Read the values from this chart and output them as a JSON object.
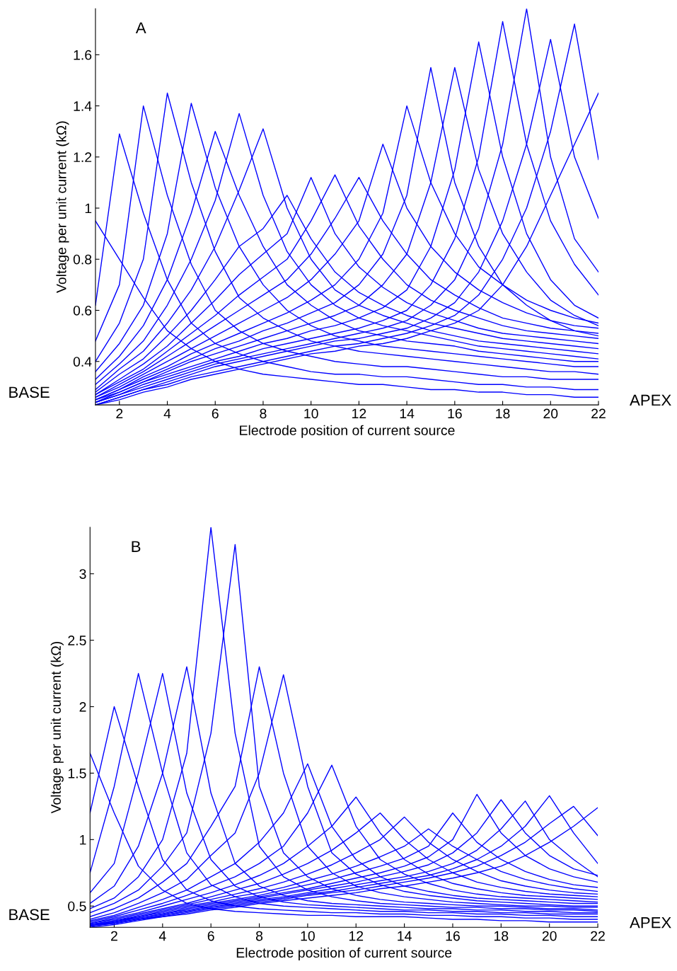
{
  "chart_data": [
    {
      "type": "line",
      "xlabel": "Electrode position of current source",
      "ylabel": "Voltage per unit current (kΩ)",
      "annotations": [
        "A",
        "BASE",
        "APEX"
      ],
      "x": [
        1,
        2,
        3,
        4,
        5,
        6,
        7,
        8,
        9,
        10,
        11,
        12,
        13,
        14,
        15,
        16,
        17,
        18,
        19,
        20,
        21,
        22
      ],
      "xlim": [
        1,
        22
      ],
      "xticks": [
        2,
        4,
        6,
        8,
        10,
        12,
        14,
        16,
        18,
        20,
        22
      ],
      "ylim": [
        0.23,
        1.78
      ],
      "yticks": [
        0.4,
        0.6,
        0.8,
        1,
        1.2,
        1.4,
        1.6
      ],
      "grid": false,
      "marker": "none",
      "line_style": "solid",
      "series": [
        {
          "color": "#0000ff",
          "values": [
            0.95,
            0.8,
            0.65,
            0.52,
            0.45,
            0.4,
            0.37,
            0.35,
            0.34,
            0.33,
            0.32,
            0.31,
            0.31,
            0.3,
            0.29,
            0.29,
            0.28,
            0.28,
            0.27,
            0.27,
            0.26,
            0.26
          ]
        },
        {
          "color": "#0000ff",
          "values": [
            0.62,
            1.29,
            0.98,
            0.72,
            0.55,
            0.47,
            0.43,
            0.4,
            0.38,
            0.36,
            0.35,
            0.35,
            0.34,
            0.34,
            0.33,
            0.32,
            0.31,
            0.31,
            0.3,
            0.3,
            0.29,
            0.29
          ]
        },
        {
          "color": "#0000ff",
          "values": [
            0.48,
            0.7,
            1.4,
            1.05,
            0.78,
            0.6,
            0.52,
            0.47,
            0.44,
            0.42,
            0.4,
            0.39,
            0.38,
            0.38,
            0.37,
            0.36,
            0.35,
            0.34,
            0.34,
            0.33,
            0.33,
            0.33
          ]
        },
        {
          "color": "#0000ff",
          "values": [
            0.4,
            0.55,
            0.8,
            1.45,
            1.1,
            0.83,
            0.65,
            0.57,
            0.52,
            0.48,
            0.46,
            0.44,
            0.43,
            0.42,
            0.41,
            0.4,
            0.39,
            0.38,
            0.37,
            0.36,
            0.36,
            0.35
          ]
        },
        {
          "color": "#0000ff",
          "values": [
            0.36,
            0.47,
            0.62,
            0.9,
            1.41,
            1.08,
            0.85,
            0.7,
            0.6,
            0.54,
            0.5,
            0.48,
            0.46,
            0.45,
            0.44,
            0.43,
            0.42,
            0.41,
            0.4,
            0.39,
            0.38,
            0.38
          ]
        },
        {
          "color": "#0000ff",
          "values": [
            0.33,
            0.42,
            0.54,
            0.72,
            0.98,
            1.3,
            1.05,
            0.85,
            0.7,
            0.62,
            0.56,
            0.52,
            0.5,
            0.48,
            0.47,
            0.46,
            0.44,
            0.43,
            0.42,
            0.41,
            0.4,
            0.4
          ]
        },
        {
          "color": "#0000ff",
          "values": [
            0.31,
            0.39,
            0.48,
            0.62,
            0.8,
            1.03,
            1.37,
            1.05,
            0.83,
            0.7,
            0.62,
            0.57,
            0.54,
            0.52,
            0.5,
            0.48,
            0.46,
            0.45,
            0.44,
            0.43,
            0.42,
            0.41
          ]
        },
        {
          "color": "#0000ff",
          "values": [
            0.29,
            0.37,
            0.44,
            0.55,
            0.68,
            0.85,
            1.07,
            1.31,
            1.0,
            0.8,
            0.68,
            0.62,
            0.58,
            0.55,
            0.52,
            0.5,
            0.48,
            0.47,
            0.46,
            0.45,
            0.44,
            0.43
          ]
        },
        {
          "color": "#0000ff",
          "values": [
            0.28,
            0.35,
            0.41,
            0.5,
            0.6,
            0.72,
            0.85,
            0.92,
            1.05,
            0.88,
            0.75,
            0.67,
            0.62,
            0.58,
            0.55,
            0.53,
            0.51,
            0.49,
            0.48,
            0.47,
            0.46,
            0.45
          ]
        },
        {
          "color": "#0000ff",
          "values": [
            0.27,
            0.33,
            0.39,
            0.46,
            0.55,
            0.64,
            0.74,
            0.82,
            0.9,
            1.12,
            0.9,
            0.77,
            0.69,
            0.63,
            0.59,
            0.56,
            0.53,
            0.51,
            0.5,
            0.49,
            0.48,
            0.47
          ]
        },
        {
          "color": "#0000ff",
          "values": [
            0.27,
            0.32,
            0.37,
            0.44,
            0.51,
            0.58,
            0.66,
            0.73,
            0.8,
            0.95,
            1.13,
            0.93,
            0.8,
            0.7,
            0.64,
            0.6,
            0.57,
            0.54,
            0.52,
            0.51,
            0.5,
            0.49
          ]
        },
        {
          "color": "#0000ff",
          "values": [
            0.26,
            0.31,
            0.36,
            0.42,
            0.48,
            0.54,
            0.6,
            0.66,
            0.72,
            0.82,
            0.96,
            1.12,
            0.95,
            0.82,
            0.72,
            0.66,
            0.61,
            0.57,
            0.55,
            0.53,
            0.52,
            0.51
          ]
        },
        {
          "color": "#0000ff",
          "values": [
            0.26,
            0.3,
            0.35,
            0.4,
            0.45,
            0.5,
            0.55,
            0.6,
            0.65,
            0.72,
            0.82,
            0.95,
            1.25,
            1.0,
            0.85,
            0.75,
            0.68,
            0.63,
            0.59,
            0.56,
            0.54,
            0.53
          ]
        },
        {
          "color": "#0000ff",
          "values": [
            0.25,
            0.29,
            0.34,
            0.38,
            0.43,
            0.47,
            0.51,
            0.55,
            0.59,
            0.64,
            0.7,
            0.8,
            0.98,
            1.4,
            1.1,
            0.9,
            0.77,
            0.7,
            0.64,
            0.6,
            0.57,
            0.55
          ]
        },
        {
          "color": "#0000ff",
          "values": [
            0.25,
            0.29,
            0.33,
            0.37,
            0.41,
            0.45,
            0.48,
            0.52,
            0.55,
            0.59,
            0.63,
            0.7,
            0.82,
            1.05,
            1.55,
            1.1,
            0.85,
            0.7,
            0.62,
            0.56,
            0.52,
            0.5
          ]
        },
        {
          "color": "#0000ff",
          "values": [
            0.25,
            0.28,
            0.32,
            0.36,
            0.4,
            0.43,
            0.46,
            0.49,
            0.52,
            0.55,
            0.58,
            0.62,
            0.7,
            0.82,
            1.1,
            1.55,
            1.15,
            0.9,
            0.75,
            0.64,
            0.58,
            0.54
          ]
        },
        {
          "color": "#0000ff",
          "values": [
            0.24,
            0.28,
            0.32,
            0.35,
            0.38,
            0.41,
            0.44,
            0.47,
            0.49,
            0.52,
            0.54,
            0.57,
            0.61,
            0.68,
            0.85,
            1.15,
            1.65,
            1.2,
            0.9,
            0.72,
            0.62,
            0.57
          ]
        },
        {
          "color": "#0000ff",
          "values": [
            0.24,
            0.27,
            0.31,
            0.34,
            0.37,
            0.4,
            0.42,
            0.45,
            0.47,
            0.49,
            0.51,
            0.53,
            0.56,
            0.6,
            0.7,
            0.88,
            1.2,
            1.73,
            1.25,
            0.95,
            0.78,
            0.66
          ]
        },
        {
          "color": "#0000ff",
          "values": [
            0.24,
            0.27,
            0.3,
            0.33,
            0.36,
            0.39,
            0.41,
            0.43,
            0.45,
            0.47,
            0.49,
            0.51,
            0.53,
            0.56,
            0.62,
            0.72,
            0.92,
            1.25,
            1.78,
            1.2,
            0.88,
            0.75
          ]
        },
        {
          "color": "#0000ff",
          "values": [
            0.23,
            0.26,
            0.29,
            0.32,
            0.35,
            0.38,
            0.4,
            0.42,
            0.44,
            0.46,
            0.48,
            0.49,
            0.51,
            0.53,
            0.57,
            0.63,
            0.75,
            0.95,
            1.25,
            1.66,
            1.2,
            0.96
          ]
        },
        {
          "color": "#0000ff",
          "values": [
            0.23,
            0.26,
            0.29,
            0.31,
            0.34,
            0.36,
            0.38,
            0.4,
            0.42,
            0.44,
            0.46,
            0.47,
            0.49,
            0.51,
            0.54,
            0.58,
            0.66,
            0.8,
            1.0,
            1.3,
            1.72,
            1.19
          ]
        },
        {
          "color": "#0000ff",
          "values": [
            0.23,
            0.25,
            0.28,
            0.3,
            0.33,
            0.35,
            0.37,
            0.39,
            0.41,
            0.43,
            0.44,
            0.46,
            0.47,
            0.49,
            0.52,
            0.55,
            0.6,
            0.7,
            0.85,
            1.05,
            1.25,
            1.45
          ]
        }
      ]
    },
    {
      "type": "line",
      "xlabel": "Electrode position of current source",
      "ylabel": "Voltage per unit current (kΩ)",
      "annotations": [
        "B",
        "BASE",
        "APEX"
      ],
      "x": [
        1,
        2,
        3,
        4,
        5,
        6,
        7,
        8,
        9,
        10,
        11,
        12,
        13,
        14,
        15,
        16,
        17,
        18,
        19,
        20,
        21,
        22
      ],
      "xlim": [
        1,
        22
      ],
      "xticks": [
        2,
        4,
        6,
        8,
        10,
        12,
        14,
        16,
        18,
        20,
        22
      ],
      "ylim": [
        0.34,
        3.35
      ],
      "yticks": [
        0.5,
        1,
        1.5,
        2,
        2.5,
        3
      ],
      "grid": false,
      "marker": "none",
      "line_style": "solid",
      "series": [
        {
          "color": "#0000ff",
          "values": [
            1.65,
            1.2,
            0.8,
            0.62,
            0.52,
            0.48,
            0.46,
            0.45,
            0.44,
            0.43,
            0.43,
            0.42,
            0.42,
            0.42,
            0.41,
            0.4,
            0.4,
            0.39,
            0.39,
            0.38,
            0.38,
            0.38
          ]
        },
        {
          "color": "#0000ff",
          "values": [
            1.2,
            2.0,
            1.4,
            0.85,
            0.62,
            0.54,
            0.5,
            0.48,
            0.47,
            0.46,
            0.45,
            0.45,
            0.44,
            0.44,
            0.43,
            0.43,
            0.42,
            0.42,
            0.41,
            0.41,
            0.4,
            0.4
          ]
        },
        {
          "color": "#0000ff",
          "values": [
            0.75,
            1.4,
            2.25,
            1.5,
            0.9,
            0.66,
            0.57,
            0.52,
            0.5,
            0.49,
            0.48,
            0.47,
            0.46,
            0.46,
            0.45,
            0.45,
            0.44,
            0.44,
            0.43,
            0.43,
            0.42,
            0.42
          ]
        },
        {
          "color": "#0000ff",
          "values": [
            0.6,
            0.82,
            1.5,
            2.25,
            1.35,
            0.85,
            0.65,
            0.57,
            0.53,
            0.51,
            0.5,
            0.49,
            0.48,
            0.47,
            0.47,
            0.46,
            0.46,
            0.45,
            0.45,
            0.44,
            0.44,
            0.44
          ]
        },
        {
          "color": "#0000ff",
          "values": [
            0.52,
            0.65,
            0.95,
            1.5,
            2.3,
            1.35,
            0.82,
            0.65,
            0.58,
            0.54,
            0.52,
            0.51,
            0.5,
            0.49,
            0.48,
            0.48,
            0.47,
            0.47,
            0.46,
            0.46,
            0.45,
            0.45
          ]
        },
        {
          "color": "#0000ff",
          "values": [
            0.48,
            0.56,
            0.72,
            1.0,
            1.65,
            3.35,
            1.8,
            0.95,
            0.72,
            0.62,
            0.57,
            0.54,
            0.52,
            0.51,
            0.5,
            0.49,
            0.49,
            0.48,
            0.48,
            0.47,
            0.47,
            0.46
          ]
        },
        {
          "color": "#0000ff",
          "values": [
            0.45,
            0.52,
            0.62,
            0.8,
            1.05,
            1.8,
            3.22,
            1.4,
            0.9,
            0.72,
            0.63,
            0.58,
            0.55,
            0.53,
            0.52,
            0.51,
            0.5,
            0.5,
            0.49,
            0.48,
            0.48,
            0.47
          ]
        },
        {
          "color": "#0000ff",
          "values": [
            0.42,
            0.48,
            0.56,
            0.68,
            0.82,
            1.1,
            1.4,
            2.3,
            1.5,
            0.95,
            0.75,
            0.65,
            0.6,
            0.57,
            0.55,
            0.53,
            0.52,
            0.51,
            0.5,
            0.5,
            0.49,
            0.49
          ]
        },
        {
          "color": "#0000ff",
          "values": [
            0.4,
            0.45,
            0.52,
            0.6,
            0.7,
            0.88,
            1.05,
            1.5,
            2.24,
            1.4,
            0.9,
            0.74,
            0.66,
            0.61,
            0.58,
            0.56,
            0.54,
            0.53,
            0.52,
            0.51,
            0.5,
            0.5
          ]
        },
        {
          "color": "#0000ff",
          "values": [
            0.39,
            0.43,
            0.49,
            0.55,
            0.62,
            0.72,
            0.82,
            0.98,
            1.2,
            1.57,
            1.1,
            0.85,
            0.72,
            0.65,
            0.61,
            0.58,
            0.56,
            0.55,
            0.54,
            0.53,
            0.52,
            0.52
          ]
        },
        {
          "color": "#0000ff",
          "values": [
            0.38,
            0.42,
            0.47,
            0.52,
            0.58,
            0.65,
            0.72,
            0.82,
            0.95,
            1.2,
            1.56,
            1.1,
            0.85,
            0.74,
            0.67,
            0.62,
            0.59,
            0.57,
            0.56,
            0.55,
            0.54,
            0.53
          ]
        },
        {
          "color": "#0000ff",
          "values": [
            0.37,
            0.41,
            0.45,
            0.5,
            0.55,
            0.6,
            0.66,
            0.73,
            0.82,
            0.95,
            1.1,
            1.32,
            1.05,
            0.85,
            0.74,
            0.67,
            0.63,
            0.6,
            0.58,
            0.57,
            0.56,
            0.55
          ]
        },
        {
          "color": "#0000ff",
          "values": [
            0.37,
            0.4,
            0.44,
            0.48,
            0.52,
            0.57,
            0.62,
            0.67,
            0.74,
            0.82,
            0.92,
            1.05,
            1.2,
            1.0,
            0.85,
            0.75,
            0.68,
            0.64,
            0.61,
            0.59,
            0.58,
            0.57
          ]
        },
        {
          "color": "#0000ff",
          "values": [
            0.36,
            0.39,
            0.43,
            0.47,
            0.51,
            0.55,
            0.59,
            0.63,
            0.68,
            0.74,
            0.81,
            0.9,
            1.0,
            1.17,
            0.98,
            0.85,
            0.76,
            0.69,
            0.65,
            0.62,
            0.6,
            0.59
          ]
        },
        {
          "color": "#0000ff",
          "values": [
            0.36,
            0.39,
            0.42,
            0.46,
            0.5,
            0.53,
            0.57,
            0.6,
            0.64,
            0.69,
            0.74,
            0.8,
            0.87,
            0.95,
            1.08,
            0.95,
            0.85,
            0.76,
            0.7,
            0.66,
            0.63,
            0.61
          ]
        },
        {
          "color": "#0000ff",
          "values": [
            0.36,
            0.38,
            0.42,
            0.45,
            0.49,
            0.52,
            0.55,
            0.58,
            0.62,
            0.66,
            0.7,
            0.75,
            0.8,
            0.86,
            0.95,
            1.2,
            0.98,
            0.85,
            0.76,
            0.7,
            0.66,
            0.64
          ]
        },
        {
          "color": "#0000ff",
          "values": [
            0.35,
            0.38,
            0.41,
            0.44,
            0.48,
            0.51,
            0.54,
            0.57,
            0.6,
            0.63,
            0.67,
            0.71,
            0.75,
            0.8,
            0.87,
            1.0,
            1.34,
            1.05,
            0.88,
            0.78,
            0.72,
            0.68
          ]
        },
        {
          "color": "#0000ff",
          "values": [
            0.35,
            0.38,
            0.41,
            0.44,
            0.47,
            0.5,
            0.53,
            0.56,
            0.59,
            0.62,
            0.65,
            0.68,
            0.72,
            0.76,
            0.81,
            0.9,
            1.05,
            1.3,
            1.05,
            0.88,
            0.78,
            0.73
          ]
        },
        {
          "color": "#0000ff",
          "values": [
            0.35,
            0.37,
            0.4,
            0.43,
            0.46,
            0.49,
            0.52,
            0.55,
            0.57,
            0.6,
            0.63,
            0.66,
            0.69,
            0.72,
            0.76,
            0.82,
            0.92,
            1.08,
            1.29,
            1.0,
            0.85,
            0.72
          ]
        },
        {
          "color": "#0000ff",
          "values": [
            0.35,
            0.37,
            0.4,
            0.43,
            0.46,
            0.49,
            0.51,
            0.54,
            0.56,
            0.59,
            0.61,
            0.64,
            0.67,
            0.7,
            0.73,
            0.78,
            0.85,
            0.95,
            1.1,
            1.33,
            1.05,
            0.82
          ]
        },
        {
          "color": "#0000ff",
          "values": [
            0.35,
            0.37,
            0.4,
            0.42,
            0.45,
            0.48,
            0.5,
            0.53,
            0.55,
            0.58,
            0.6,
            0.62,
            0.65,
            0.68,
            0.71,
            0.75,
            0.8,
            0.88,
            0.98,
            1.12,
            1.25,
            1.03
          ]
        },
        {
          "color": "#0000ff",
          "values": [
            0.34,
            0.36,
            0.39,
            0.42,
            0.44,
            0.47,
            0.49,
            0.52,
            0.54,
            0.56,
            0.58,
            0.6,
            0.63,
            0.65,
            0.68,
            0.71,
            0.75,
            0.8,
            0.88,
            0.98,
            1.1,
            1.24
          ]
        }
      ]
    }
  ]
}
